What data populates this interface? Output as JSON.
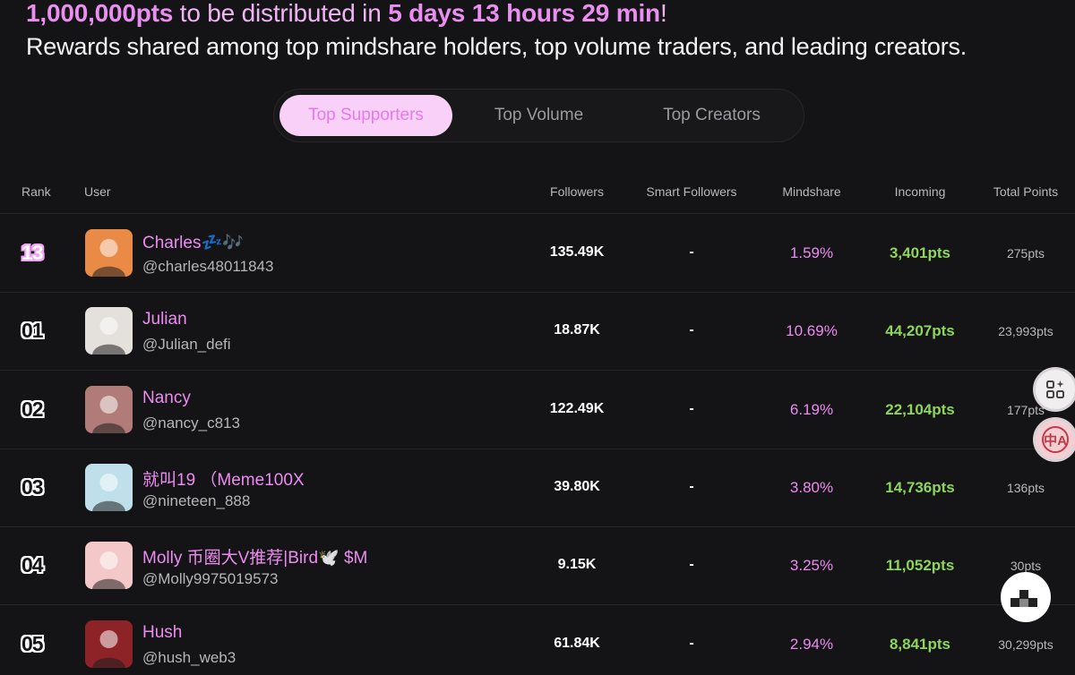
{
  "banner": {
    "points": "1,000,000pts",
    "distributed_text": "to be distributed in",
    "countdown": "5 days 13 hours 29 min",
    "exclaim": "!",
    "subtitle": "Rewards shared among top mindshare holders, top volume traders, and leading creators."
  },
  "tabs": [
    {
      "label": "Top Supporters",
      "active": true
    },
    {
      "label": "Top Volume",
      "active": false
    },
    {
      "label": "Top Creators",
      "active": false
    }
  ],
  "columns": {
    "rank": "Rank",
    "user": "User",
    "followers": "Followers",
    "smart_followers": "Smart Followers",
    "mindshare": "Mindshare",
    "incoming": "Incoming",
    "total_points": "Total Points"
  },
  "rows": [
    {
      "rank": "13",
      "name": "Charles💤🎶",
      "handle": "@charles48011843",
      "followers": "135.49K",
      "smart": "-",
      "mindshare": "1.59%",
      "incoming": "3,401pts",
      "total": "275pts",
      "avatar_color": "#e98b47",
      "highlight": true
    },
    {
      "rank": "01",
      "name": "Julian",
      "handle": "@Julian_defi",
      "followers": "18.87K",
      "smart": "-",
      "mindshare": "10.69%",
      "incoming": "44,207pts",
      "total": "23,993pts",
      "avatar_color": "#e4e1dc",
      "highlight": false
    },
    {
      "rank": "02",
      "name": "Nancy",
      "handle": "@nancy_c813",
      "followers": "122.49K",
      "smart": "-",
      "mindshare": "6.19%",
      "incoming": "22,104pts",
      "total": "177pts",
      "avatar_color": "#b07b78",
      "highlight": false
    },
    {
      "rank": "03",
      "name": "就叫19 （Meme100X",
      "handle": "@nineteen_888",
      "followers": "39.80K",
      "smart": "-",
      "mindshare": "3.80%",
      "incoming": "14,736pts",
      "total": "136pts",
      "avatar_color": "#bfe0ea",
      "highlight": false
    },
    {
      "rank": "04",
      "name": "Molly 币圈大V推荐|Bird🕊️ $M",
      "handle": "@Molly9975019573",
      "followers": "9.15K",
      "smart": "-",
      "mindshare": "3.25%",
      "incoming": "11,052pts",
      "total": "30pts",
      "avatar_color": "#f4c7c9",
      "highlight": false
    },
    {
      "rank": "05",
      "name": "Hush",
      "handle": "@hush_web3",
      "followers": "61.84K",
      "smart": "-",
      "mindshare": "2.94%",
      "incoming": "8,841pts",
      "total": "30,299pts",
      "avatar_color": "#8e2327",
      "highlight": false
    }
  ],
  "side_buttons": {
    "translate_label": "中A"
  }
}
